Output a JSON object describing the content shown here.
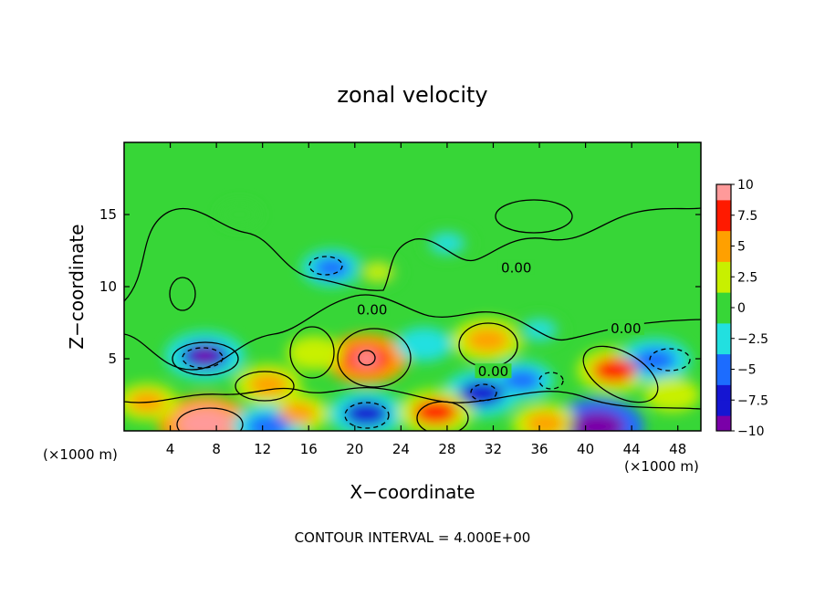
{
  "chart_data": {
    "type": "heatmap",
    "title": "zonal velocity",
    "xlabel": "X−coordinate",
    "ylabel": "Z−coordinate",
    "x_unit_left": "(×1000 m)",
    "x_unit_right": "(×1000 m)",
    "footer": "CONTOUR INTERVAL = 4.000E+00",
    "xlim": [
      0,
      50
    ],
    "ylim": [
      0,
      20
    ],
    "x_ticks": [
      4,
      8,
      12,
      16,
      20,
      24,
      28,
      32,
      36,
      40,
      44,
      48
    ],
    "y_ticks": [
      5,
      10,
      15
    ],
    "colorbar": {
      "range": [
        -10,
        10
      ],
      "tick_values": [
        10,
        7.5,
        5,
        2.5,
        0,
        -2.5,
        -5,
        -7.5,
        -10
      ],
      "tick_labels": [
        "10",
        "7.5",
        "5",
        "2.5",
        "0",
        "−2.5",
        "−5",
        "−7.5",
        "−10"
      ]
    },
    "contour_labels": [
      {
        "text": "0.00",
        "x": 21.5,
        "z": 8.4
      },
      {
        "text": "0.00",
        "x": 34.0,
        "z": 11.3
      },
      {
        "text": "0.00",
        "x": 43.5,
        "z": 7.1
      },
      {
        "text": "0.00",
        "x": 32.0,
        "z": 4.1
      }
    ],
    "features": [
      {
        "x": 7.0,
        "z": 0.5,
        "value": 10
      },
      {
        "x": 41.0,
        "z": 0.3,
        "value": -10
      },
      {
        "x": 7.0,
        "z": 5.2,
        "value": -7.5
      },
      {
        "x": 21.0,
        "z": 5.0,
        "value": 8
      },
      {
        "x": 31.5,
        "z": 6.3,
        "value": 6
      },
      {
        "x": 31.0,
        "z": 2.6,
        "value": -7
      },
      {
        "x": 42.5,
        "z": 4.2,
        "value": 6.5
      },
      {
        "x": 46.0,
        "z": 4.9,
        "value": -6
      },
      {
        "x": 21.0,
        "z": 1.2,
        "value": -6.5
      },
      {
        "x": 12.5,
        "z": 3.2,
        "value": 5
      },
      {
        "x": 16.5,
        "z": 5.4,
        "value": 3
      },
      {
        "x": 27.0,
        "z": 1.3,
        "value": 6.5
      },
      {
        "x": 15.0,
        "z": 1.2,
        "value": 4.5
      },
      {
        "x": 12.5,
        "z": 0.3,
        "value": -6
      },
      {
        "x": 36.5,
        "z": 0.5,
        "value": 5
      },
      {
        "x": 34.5,
        "z": 3.5,
        "value": -4.5
      },
      {
        "x": 18.0,
        "z": 11.3,
        "value": -4
      },
      {
        "x": 22.0,
        "z": 11.0,
        "value": 1.5
      },
      {
        "x": 28.0,
        "z": 13.0,
        "value": -2
      },
      {
        "x": 10.0,
        "z": 15.0,
        "value": 0.5
      },
      {
        "x": 2.0,
        "z": 2.0,
        "value": 4
      },
      {
        "x": 26.0,
        "z": 6.0,
        "value": -3
      },
      {
        "x": 36.0,
        "z": 7.0,
        "value": -2
      },
      {
        "x": 47.5,
        "z": 2.5,
        "value": 3
      }
    ]
  }
}
